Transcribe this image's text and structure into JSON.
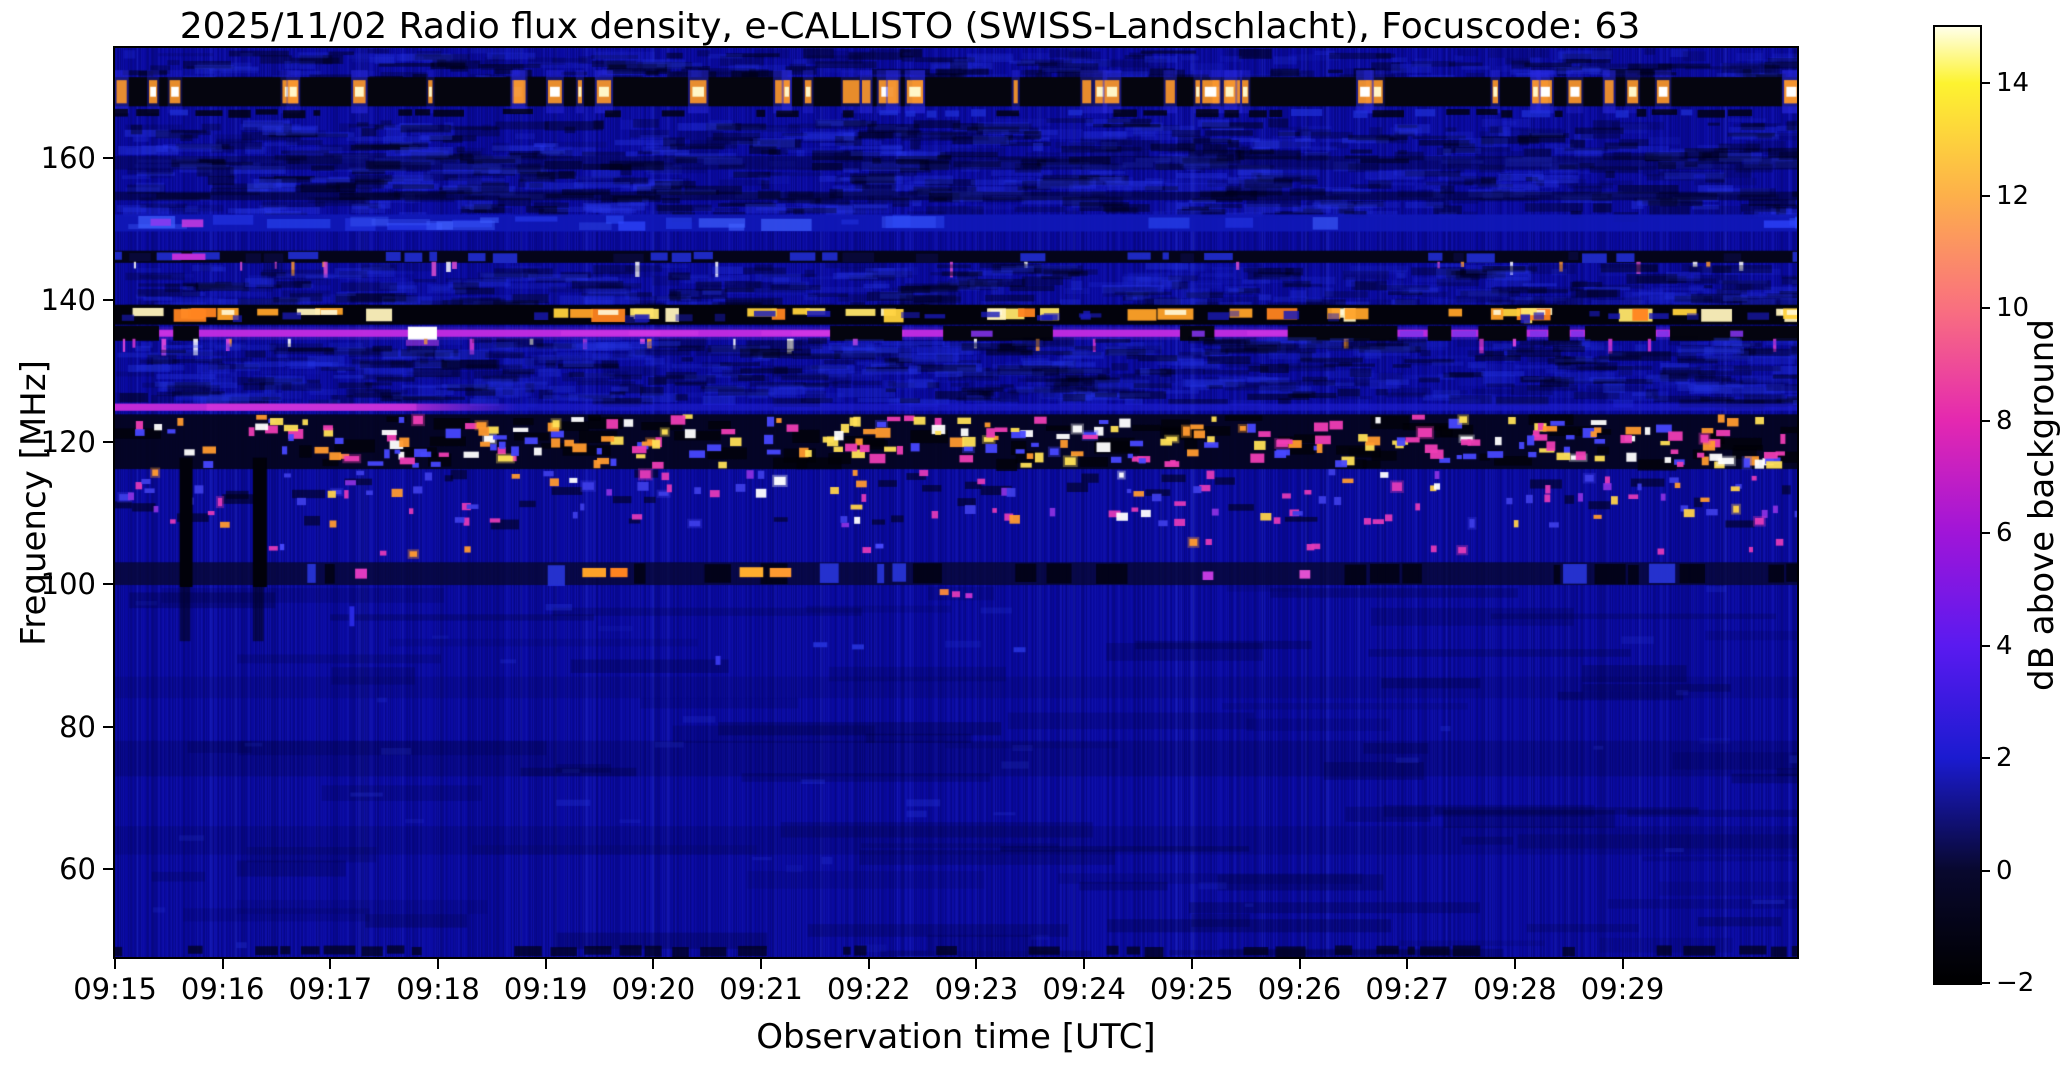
{
  "figure": {
    "title": "2025/11/02  Radio flux density, e-CALLISTO (SWISS-Landschlacht), Focuscode: 63",
    "xlabel": "Observation time [UTC]",
    "ylabel": "Frequency [MHz]",
    "colorbar_label": "dB above background"
  },
  "chart_data": {
    "type": "heatmap",
    "title": "2025/11/02  Radio flux density, e-CALLISTO (SWISS-Landschlacht), Focuscode: 63",
    "xlabel": "Observation time [UTC]",
    "ylabel": "Frequency [MHz]",
    "x_start_time_utc": "09:15",
    "x_range_minutes": [
      0,
      15.62
    ],
    "freq_range_mhz": [
      47.6,
      175.4
    ],
    "grid": false,
    "base_color": "#0a0aa2",
    "seed": 42,
    "xticks": [
      {
        "minute": 0,
        "label": "09:15"
      },
      {
        "minute": 1,
        "label": "09:16"
      },
      {
        "minute": 2,
        "label": "09:17"
      },
      {
        "minute": 3,
        "label": "09:18"
      },
      {
        "minute": 4,
        "label": "09:19"
      },
      {
        "minute": 5,
        "label": "09:20"
      },
      {
        "minute": 6,
        "label": "09:21"
      },
      {
        "minute": 7,
        "label": "09:22"
      },
      {
        "minute": 8,
        "label": "09:23"
      },
      {
        "minute": 9,
        "label": "09:24"
      },
      {
        "minute": 10,
        "label": "09:25"
      },
      {
        "minute": 11,
        "label": "09:26"
      },
      {
        "minute": 12,
        "label": "09:27"
      },
      {
        "minute": 13,
        "label": "09:28"
      },
      {
        "minute": 14,
        "label": "09:29"
      }
    ],
    "yticks": [
      {
        "mhz": 160,
        "label": "160"
      },
      {
        "mhz": 140,
        "label": "140"
      },
      {
        "mhz": 120,
        "label": "120"
      },
      {
        "mhz": 100,
        "label": "100"
      },
      {
        "mhz": 80,
        "label": "80"
      },
      {
        "mhz": 60,
        "label": "60"
      }
    ],
    "colorbar": {
      "label": "dB above background",
      "range_db": [
        -2,
        15
      ],
      "ticks": [
        {
          "v": 14,
          "label": "14"
        },
        {
          "v": 12,
          "label": "12"
        },
        {
          "v": 10,
          "label": "10"
        },
        {
          "v": 8,
          "label": "8"
        },
        {
          "v": 6,
          "label": "6"
        },
        {
          "v": 4,
          "label": "4"
        },
        {
          "v": 2,
          "label": "2"
        },
        {
          "v": 0,
          "label": "0"
        },
        {
          "v": -2,
          "label": "−2"
        }
      ],
      "gradient": [
        {
          "v": -2,
          "c": "#000000"
        },
        {
          "v": 0,
          "c": "#08082e"
        },
        {
          "v": 2,
          "c": "#1b1bd0"
        },
        {
          "v": 4,
          "c": "#5a1af0"
        },
        {
          "v": 6,
          "c": "#a015d8"
        },
        {
          "v": 8,
          "c": "#e428b0"
        },
        {
          "v": 10,
          "c": "#f9707f"
        },
        {
          "v": 12,
          "c": "#fdb04a"
        },
        {
          "v": 14,
          "c": "#fdf330"
        },
        {
          "v": 15,
          "c": "#ffffe8"
        }
      ]
    },
    "bands": [
      {
        "name": "top-mottle",
        "style": "mottle",
        "f": [
          171.3,
          175.4
        ],
        "n": 260,
        "dark": "#000016",
        "light": "#2737e8",
        "aDark": 0.5,
        "aLight": 0.25,
        "lightRatio": 0.4
      },
      {
        "name": "pager-burst-row-168",
        "style": "glow_row",
        "f": [
          167.2,
          171.3
        ],
        "bg": "#05050f",
        "count": 46,
        "coreColors": [
          "#ffffff",
          "#fff6c8"
        ],
        "halo": "#ff9a28",
        "haze": "#2a2ae0",
        "wMin": 4,
        "wMax": 18
      },
      {
        "name": "dark-dash-166",
        "style": "dash_row",
        "f": [
          165.6,
          167.0
        ],
        "dashes": [
          {
            "color": "#01010c",
            "cov": 0.5,
            "a": 0.8
          },
          {
            "color": "#2030d8",
            "cov": 0.25,
            "a": 0.7
          }
        ]
      },
      {
        "name": "upper-mottle",
        "style": "mottle",
        "f": [
          152.2,
          165.6
        ],
        "n": 900,
        "dark": "#000014",
        "light": "#2b3bf0",
        "aDark": 0.4,
        "aLight": 0.3,
        "lightRatio": 0.45,
        "rows": [
          {
            "f": [
              158.3,
              160.2
            ],
            "color": "#000018",
            "a": 0.3
          },
          {
            "f": [
              154.0,
              155.2
            ],
            "color": "#000018",
            "a": 0.45
          }
        ]
      },
      {
        "name": "blue-band-151",
        "style": "blob_band",
        "f": [
          149.6,
          152.0
        ],
        "base": "#1118b8",
        "baseA": 0.9,
        "blobs": 30,
        "colors": [
          "#2f46ff",
          "#3050ff",
          "#4060ff"
        ],
        "extra": [
          {
            "t": [
              0.33,
              0.52
            ],
            "f": [
              150.4,
              151.4
            ],
            "color": "#8a3af0"
          },
          {
            "t": [
              0.62,
              0.82
            ],
            "f": [
              150.2,
              151.3
            ],
            "color": "#c23ae0"
          }
        ]
      },
      {
        "name": "dash-row-146",
        "style": "dash_row",
        "f": [
          145.2,
          146.9
        ],
        "bg": "#04041a",
        "dashes": [
          {
            "color": "#2330e0",
            "cov": 0.4,
            "a": 0.85
          },
          {
            "color": "#0a0a40",
            "cov": 0.2,
            "a": 0.8
          }
        ],
        "segs": [
          {
            "t": [
              0.53,
              0.84
            ],
            "f": [
              145.6,
              146.5
            ],
            "color": "#c02fd8"
          }
        ],
        "ticks": {
          "n": 22,
          "colors": [
            "#e050d0",
            "#ff9a30",
            "#ffffff"
          ],
          "wMax": 5
        }
      },
      {
        "name": "mid-mottle",
        "style": "mottle",
        "f": [
          139.3,
          145.2
        ],
        "n": 420,
        "dark": "#000014",
        "light": "#2838ea",
        "aDark": 0.35,
        "aLight": 0.28,
        "lightRatio": 0.45
      },
      {
        "name": "satellite-dash-band-137",
        "style": "glow_row",
        "variant": "dash",
        "f": [
          136.5,
          139.3
        ],
        "subF": [
          137.4,
          139.0
        ],
        "bg": "#02020c",
        "count": 50,
        "coreColors": [
          "#ffd23c",
          "#ffa228",
          "#fff3bd",
          "#ff8420",
          "#ffe66a"
        ],
        "halo": "#c05a10",
        "haze": "#1818b0",
        "wMin": 8,
        "wMax": 36
      },
      {
        "name": "carrier-line-135",
        "style": "line",
        "f": [
          134.8,
          135.8
        ],
        "color": "#c32ce2",
        "glow": "#7a2ce0",
        "gaps": [
          [
            0,
            0.4
          ],
          [
            0.55,
            0.77
          ],
          [
            6.65,
            7.3
          ],
          [
            7.7,
            8.7
          ],
          [
            9.9,
            10.2
          ],
          [
            10.9,
            11.9
          ],
          [
            12.2,
            12.4
          ],
          [
            12.67,
            13.1
          ],
          [
            13.32,
            13.5
          ],
          [
            13.66,
            14.3
          ],
          [
            14.45,
            15.62
          ]
        ],
        "dims": [
          [
            11.93,
            12.15
          ],
          [
            12.42,
            12.64
          ],
          [
            13.14,
            13.3
          ],
          [
            13.52,
            13.64
          ],
          [
            14.32,
            14.43
          ],
          [
            15.0,
            15.12
          ],
          [
            7.95,
            8.15
          ],
          [
            10.0,
            10.12
          ]
        ],
        "bright": [
          [
            2.72,
            2.99,
            "#ffffff"
          ]
        ],
        "ticksBelow": {
          "n": 26,
          "f": [
            133.4,
            134.7
          ],
          "colors": [
            "#e84ae0",
            "#ff9a30",
            "#ffffff",
            "#d035d0"
          ]
        }
      },
      {
        "name": "low-mottle",
        "style": "mottle",
        "f": [
          125.9,
          134.8
        ],
        "n": 700,
        "dark": "#000012",
        "light": "#2636e6",
        "aDark": 0.38,
        "aLight": 0.3,
        "lightRatio": 0.48
      },
      {
        "name": "fading-line-125",
        "style": "line_fade",
        "f": [
          124.4,
          125.4
        ],
        "color": "#cc2cd8",
        "fade": [
          0,
          3.75
        ],
        "hot": [
          0.85,
          2.8
        ],
        "base": "#2020d8",
        "baseA": 0.55
      },
      {
        "name": "aviation-speckle-120",
        "style": "speckle",
        "f": [
          116.2,
          123.9
        ],
        "bg": "#04041c",
        "bgA": 0.92,
        "count": 270,
        "blackPatches": 70,
        "palette": [
          [
            "#ffffff",
            0.14
          ],
          [
            "#ffe056",
            0.2
          ],
          [
            "#ff9a2e",
            0.16
          ],
          [
            "#ee3db4",
            0.24
          ],
          [
            "#4747ff",
            0.26
          ]
        ],
        "wMin": 5,
        "wMax": 16,
        "hMin": 4,
        "hMax": 10
      },
      {
        "name": "speckle-112",
        "style": "speckle",
        "f": [
          107.9,
          116.2
        ],
        "count": 135,
        "darkDashes": 40,
        "palette": [
          [
            "#e23ab8",
            0.26
          ],
          [
            "#3d3de6",
            0.36
          ],
          [
            "#ff9a30",
            0.13
          ],
          [
            "#8a30e0",
            0.13
          ],
          [
            "#ffffff",
            0.06
          ],
          [
            "#ffd24a",
            0.06
          ]
        ],
        "wMin": 4,
        "wMax": 12,
        "hMin": 4,
        "hMax": 9
      },
      {
        "name": "sparse-row-105",
        "style": "speckle",
        "f": [
          103.6,
          106.4
        ],
        "count": 16,
        "palette": [
          [
            "#ff9a30",
            0.3
          ],
          [
            "#e23ab8",
            0.4
          ],
          [
            "#4a4aff",
            0.3
          ]
        ],
        "wMin": 4,
        "wMax": 9,
        "hMin": 4,
        "hMax": 7
      },
      {
        "name": "dark-row-101",
        "style": "dash_row",
        "f": [
          99.9,
          103.1
        ],
        "bg": "#07072c",
        "bgA": 0.75,
        "dashes": [
          {
            "color": "#010112",
            "cov": 0.3,
            "a": 0.85
          },
          {
            "color": "#2d3cf0",
            "cov": 0.22,
            "a": 0.8
          }
        ],
        "segs": [
          {
            "t": [
              2.23,
              2.34
            ],
            "f": [
              100.8,
              102.2
            ],
            "color": "#e03ac0"
          },
          {
            "t": [
              4.34,
              4.56
            ],
            "f": [
              101.0,
              102.3
            ],
            "color": "#ffa228"
          },
          {
            "t": [
              4.6,
              4.76
            ],
            "f": [
              101.0,
              102.3
            ],
            "color": "#ff8420"
          },
          {
            "t": [
              5.8,
              6.02
            ],
            "f": [
              101.0,
              102.4
            ],
            "color": "#ffae2e"
          },
          {
            "t": [
              6.08,
              6.28
            ],
            "f": [
              101.0,
              102.3
            ],
            "color": "#ff9a30"
          },
          {
            "t": [
              10.1,
              10.2
            ],
            "f": [
              100.6,
              101.8
            ],
            "color": "#c23ae0"
          },
          {
            "t": [
              11.0,
              11.1
            ],
            "f": [
              100.8,
              102.0
            ],
            "color": "#e050d0"
          }
        ]
      },
      {
        "name": "dropout-vstreaks",
        "style": "vstreaks",
        "color": "#01010a",
        "streaks": [
          {
            "t": [
              0.6,
              0.72
            ],
            "f": [
              99.6,
              117.8
            ]
          },
          {
            "t": [
              1.28,
              1.41
            ],
            "f": [
              99.6,
              117.8
            ]
          },
          {
            "t": [
              0.6,
              0.7
            ],
            "f": [
              92.0,
              99.6
            ],
            "a": 0.5
          },
          {
            "t": [
              1.28,
              1.38
            ],
            "f": [
              92.0,
              99.6
            ],
            "a": 0.5
          }
        ]
      },
      {
        "name": "quiet-lower-waves",
        "style": "waves",
        "f": [
          47.6,
          99.9
        ],
        "n": 80,
        "rows": [
          {
            "f": [
              73,
              78
            ],
            "a": 0.18
          },
          {
            "f": [
              62,
              66
            ],
            "a": 0.14
          },
          {
            "f": [
              84,
              87
            ],
            "a": 0.12
          }
        ]
      },
      {
        "name": "isolated-dots",
        "style": "dots",
        "items": [
          {
            "t": 7.7,
            "f": 98.9,
            "c": "#ff8c3a",
            "w": 9,
            "h": 6
          },
          {
            "t": 7.81,
            "f": 98.6,
            "c": "#e03ab8",
            "w": 8,
            "h": 6
          },
          {
            "t": 7.93,
            "f": 98.4,
            "c": "#cc35d4",
            "w": 7,
            "h": 5
          },
          {
            "t": 5.6,
            "f": 89.3,
            "c": "#3a3af0",
            "w": 5,
            "h": 9
          },
          {
            "t": 2.2,
            "f": 95.5,
            "c": "#2a2ae8",
            "w": 5,
            "h": 20
          },
          {
            "t": 6.55,
            "f": 91.5,
            "c": "#2530d8",
            "w": 14,
            "h": 5
          },
          {
            "t": 6.9,
            "f": 91.2,
            "c": "#2530d8",
            "w": 12,
            "h": 5
          },
          {
            "t": 8.4,
            "f": 90.8,
            "c": "#2530d8",
            "w": 12,
            "h": 5
          }
        ]
      },
      {
        "name": "bottom-edge-dark",
        "style": "dash_row",
        "f": [
          47.6,
          49.4
        ],
        "dashes": [
          {
            "color": "#010116",
            "cov": 0.45,
            "a": 0.7
          }
        ]
      }
    ]
  }
}
